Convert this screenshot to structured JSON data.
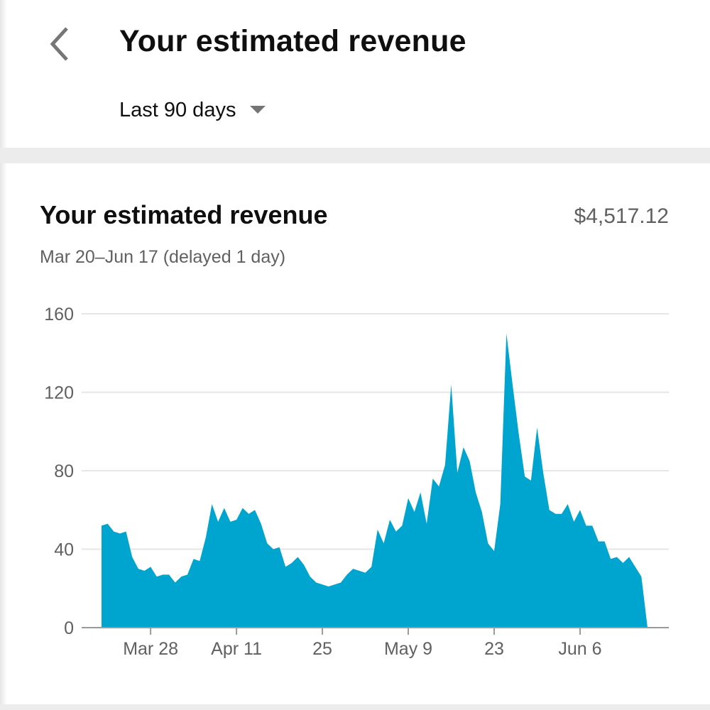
{
  "header": {
    "title": "Your estimated revenue",
    "back_icon": "chevron-left-icon",
    "range_label": "Last 90 days",
    "range_icon": "caret-down-icon"
  },
  "card": {
    "title": "Your estimated revenue",
    "total": "$4,517.12",
    "subtitle": "Mar 20–Jun 17 (delayed 1 day)"
  },
  "colors": {
    "area": "#00a5cf",
    "gridline": "#e6e6e6",
    "axis": "#9a9a9a",
    "divider": "#ececec"
  },
  "chart_data": {
    "type": "area",
    "title": "Your estimated revenue",
    "xlabel": "",
    "ylabel": "",
    "ylim": [
      0,
      160
    ],
    "yticks": [
      0,
      40,
      80,
      120,
      160
    ],
    "grid": true,
    "x_start_date": "Mar 20",
    "x_tick_labels": [
      "Mar 28",
      "Apr 11",
      "25",
      "May 9",
      "23",
      "Jun 6"
    ],
    "x_tick_day_index": [
      8,
      22,
      36,
      50,
      64,
      78
    ],
    "series": [
      {
        "name": "",
        "values": [
          52,
          53,
          49,
          48,
          49,
          36,
          30,
          29,
          31,
          26,
          27,
          27,
          23,
          26,
          27,
          35,
          34,
          46,
          63,
          54,
          61,
          54,
          55,
          61,
          58,
          60,
          53,
          43,
          40,
          41,
          31,
          33,
          36,
          32,
          26,
          23,
          22,
          21,
          22,
          23,
          27,
          30,
          29,
          28,
          31,
          50,
          43,
          55,
          49,
          52,
          66,
          59,
          69,
          53,
          76,
          72,
          83,
          124,
          79,
          92,
          85,
          69,
          59,
          43,
          39,
          63,
          150,
          124,
          99,
          77,
          75,
          102,
          79,
          60,
          58,
          58,
          63,
          54,
          60,
          52,
          52,
          44,
          44,
          35,
          36,
          33,
          36,
          31,
          26,
          0
        ]
      }
    ]
  }
}
